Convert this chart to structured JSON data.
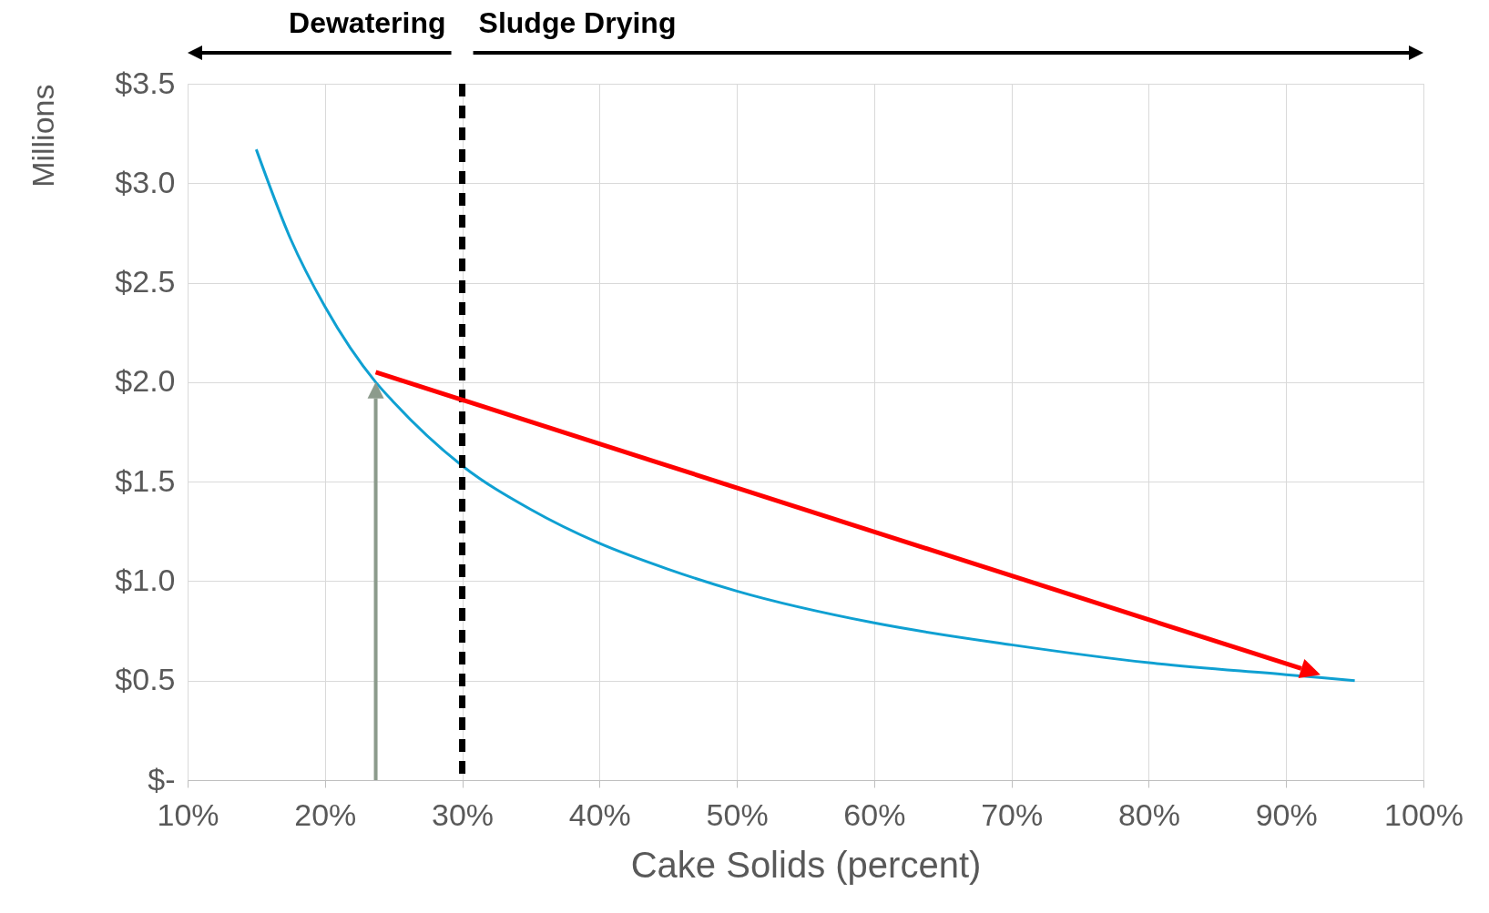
{
  "chart_data": {
    "type": "line",
    "xlabel": "Cake Solids (percent)",
    "ylabel": "Millions",
    "x": [
      15,
      17.5,
      20,
      23.7,
      25,
      30,
      35,
      40,
      45,
      50,
      60,
      70,
      80,
      90,
      95
    ],
    "series": [
      {
        "color": "#0fa0d2",
        "values": [
          3.17,
          2.72,
          2.38,
          2.0,
          1.9,
          1.58,
          1.36,
          1.19,
          1.06,
          0.95,
          0.79,
          0.68,
          0.59,
          0.53,
          0.5
        ]
      }
    ],
    "xlim": [
      10,
      100
    ],
    "xticks": [
      {
        "value": 10,
        "label": "10%"
      },
      {
        "value": 20,
        "label": "20%"
      },
      {
        "value": 30,
        "label": "30%"
      },
      {
        "value": 40,
        "label": "40%"
      },
      {
        "value": 50,
        "label": "50%"
      },
      {
        "value": 60,
        "label": "60%"
      },
      {
        "value": 70,
        "label": "70%"
      },
      {
        "value": 80,
        "label": "80%"
      },
      {
        "value": 90,
        "label": "90%"
      },
      {
        "value": 100,
        "label": "100%"
      }
    ],
    "ylim": [
      0,
      3.5
    ],
    "yticks": [
      {
        "value": 0,
        "label": "$-"
      },
      {
        "value": 0.5,
        "label": "$0.5"
      },
      {
        "value": 1,
        "label": "$1.0"
      },
      {
        "value": 1.5,
        "label": "$1.5"
      },
      {
        "value": 2,
        "label": "$2.0"
      },
      {
        "value": 2.5,
        "label": "$2.5"
      },
      {
        "value": 3,
        "label": "$3.0"
      },
      {
        "value": 3.5,
        "label": "$3.5"
      }
    ],
    "grid": true,
    "ref_lines": [
      {
        "axis": "x",
        "value": 30,
        "color": "#000000",
        "line_style": "dashed"
      }
    ],
    "annotations": [
      "Dewatering",
      "Sludge Drying"
    ]
  }
}
